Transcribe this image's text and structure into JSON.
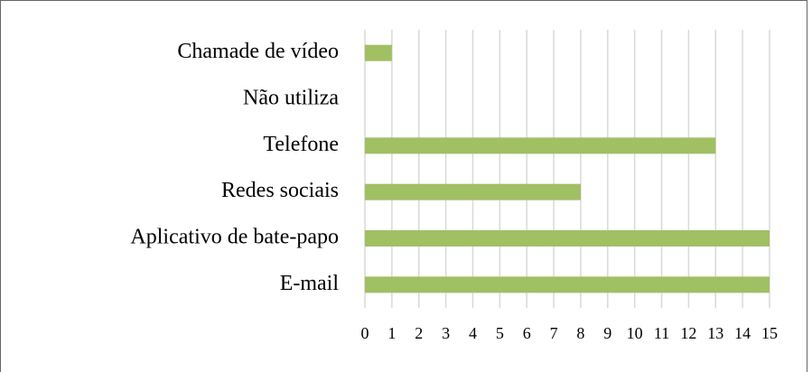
{
  "chart_data": {
    "type": "bar",
    "orientation": "horizontal",
    "categories": [
      "Chamade de vídeo",
      "Não utiliza",
      "Telefone",
      "Redes sociais",
      "Aplicativo de bate-papo",
      "E-mail"
    ],
    "values": [
      1,
      0,
      13,
      8,
      15,
      15
    ],
    "color": "#a1bf63",
    "xlim": [
      0,
      15
    ],
    "xticks": [
      0,
      1,
      2,
      3,
      4,
      5,
      6,
      7,
      8,
      9,
      10,
      11,
      12,
      13,
      14,
      15
    ],
    "grid": true
  }
}
